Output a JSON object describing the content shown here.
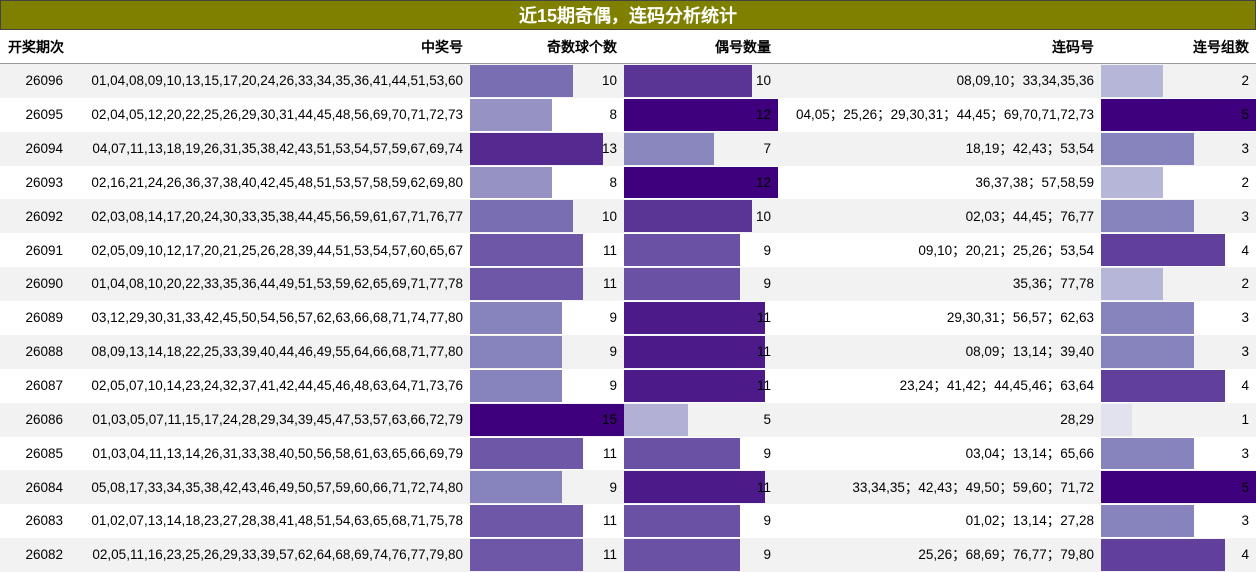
{
  "title": "近15期奇偶，连码分析统计",
  "headers": [
    "开奖期次",
    "中奖号",
    "奇数球个数",
    "偶号数量",
    "连码号",
    "连号组数"
  ],
  "rows": [
    [
      "26096",
      "01,04,08,09,10,13,15,17,20,24,26,33,34,35,36,41,44,51,53,60",
      10,
      10,
      "08,09,10；33,34,35,36",
      2
    ],
    [
      "26095",
      "02,04,05,12,20,22,25,26,29,30,31,44,45,48,56,69,70,71,72,73",
      8,
      12,
      "04,05；25,26；29,30,31；44,45；69,70,71,72,73",
      5
    ],
    [
      "26094",
      "04,07,11,13,18,19,26,31,35,38,42,43,51,53,54,57,59,67,69,74",
      13,
      7,
      "18,19；42,43；53,54",
      3
    ],
    [
      "26093",
      "02,16,21,24,26,36,37,38,40,42,45,48,51,53,57,58,59,62,69,80",
      8,
      12,
      "36,37,38；57,58,59",
      2
    ],
    [
      "26092",
      "02,03,08,14,17,20,24,30,33,35,38,44,45,56,59,61,67,71,76,77",
      10,
      10,
      "02,03；44,45；76,77",
      3
    ],
    [
      "26091",
      "02,05,09,10,12,17,20,21,25,26,28,39,44,51,53,54,57,60,65,67",
      11,
      9,
      "09,10；20,21；25,26；53,54",
      4
    ],
    [
      "26090",
      "01,04,08,10,20,22,33,35,36,44,49,51,53,59,62,65,69,71,77,78",
      11,
      9,
      "35,36；77,78",
      2
    ],
    [
      "26089",
      "03,12,29,30,31,33,42,45,50,54,56,57,62,63,66,68,71,74,77,80",
      9,
      11,
      "29,30,31；56,57；62,63",
      3
    ],
    [
      "26088",
      "08,09,13,14,18,22,25,33,39,40,44,46,49,55,64,66,68,71,77,80",
      9,
      11,
      "08,09；13,14；39,40",
      3
    ],
    [
      "26087",
      "02,05,07,10,14,23,24,32,37,41,42,44,45,46,48,63,64,71,73,76",
      9,
      11,
      "23,24；41,42；44,45,46；63,64",
      4
    ],
    [
      "26086",
      "01,03,05,07,11,15,17,24,28,29,34,39,45,47,53,57,63,66,72,79",
      15,
      5,
      "28,29",
      1
    ],
    [
      "26085",
      "01,03,04,11,13,14,26,31,33,38,40,50,56,58,61,63,65,66,69,79",
      11,
      9,
      "03,04；13,14；65,66",
      3
    ],
    [
      "26084",
      "05,08,17,33,34,35,38,42,43,46,49,50,57,59,60,66,71,72,74,80",
      9,
      11,
      "33,34,35；42,43；49,50；59,60；71,72",
      5
    ],
    [
      "26083",
      "01,02,07,13,14,18,23,27,28,38,41,48,51,54,63,65,68,71,75,78",
      11,
      9,
      "01,02；13,14；27,28",
      3
    ],
    [
      "26082",
      "02,05,11,16,23,25,26,29,33,39,57,62,64,68,69,74,76,77,79,80",
      11,
      9,
      "25,26；68,69；76,77；79,80",
      4
    ]
  ]
}
